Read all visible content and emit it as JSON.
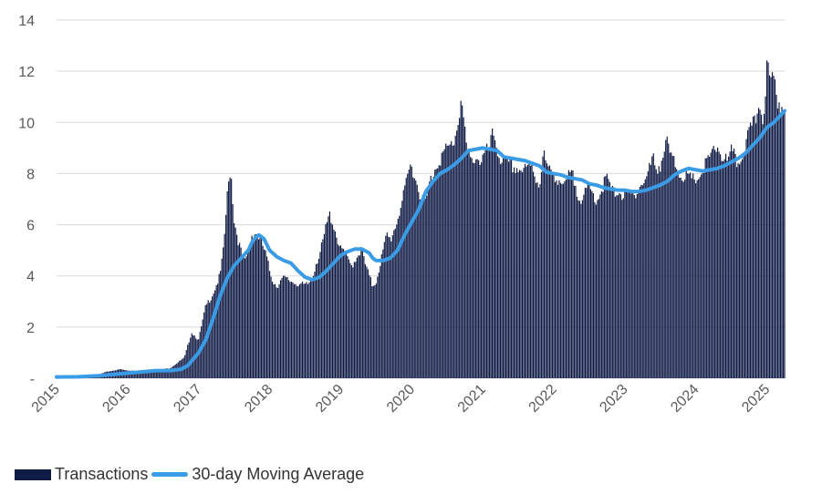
{
  "colors": {
    "bars": "#0f1a45",
    "line": "#3b9ce6",
    "grid": "#d9d9d9",
    "axis_text": "#595959",
    "legend_text": "#333333"
  },
  "chart_data": {
    "type": "bar",
    "title": "",
    "xlabel": "",
    "ylabel": "",
    "ylim": [
      0,
      14
    ],
    "y_ticks": [
      {
        "value": 0,
        "label": "-"
      },
      {
        "value": 2,
        "label": "2"
      },
      {
        "value": 4,
        "label": "4"
      },
      {
        "value": 6,
        "label": "6"
      },
      {
        "value": 8,
        "label": "8"
      },
      {
        "value": 10,
        "label": "10"
      },
      {
        "value": 12,
        "label": "12"
      },
      {
        "value": 14,
        "label": "14"
      }
    ],
    "x_range": [
      2015.0,
      2025.25
    ],
    "x_ticks": [
      {
        "value": 2015,
        "label": "2015"
      },
      {
        "value": 2016,
        "label": "2016"
      },
      {
        "value": 2017,
        "label": "2017"
      },
      {
        "value": 2018,
        "label": "2018"
      },
      {
        "value": 2019,
        "label": "2019"
      },
      {
        "value": 2020,
        "label": "2020"
      },
      {
        "value": 2021,
        "label": "2021"
      },
      {
        "value": 2022,
        "label": "2022"
      },
      {
        "value": 2023,
        "label": "2023"
      },
      {
        "value": 2024,
        "label": "2024"
      },
      {
        "value": 2025,
        "label": "2025"
      }
    ],
    "grid": "horizontal",
    "legend_position": "bottom-left",
    "series": [
      {
        "name": "Transactions",
        "kind": "bar",
        "points": [
          [
            2015.0,
            0.05
          ],
          [
            2015.1,
            0.05
          ],
          [
            2015.2,
            0.05
          ],
          [
            2015.3,
            0.06
          ],
          [
            2015.4,
            0.08
          ],
          [
            2015.5,
            0.1
          ],
          [
            2015.6,
            0.15
          ],
          [
            2015.7,
            0.25
          ],
          [
            2015.8,
            0.3
          ],
          [
            2015.9,
            0.35
          ],
          [
            2016.0,
            0.3
          ],
          [
            2016.1,
            0.3
          ],
          [
            2016.2,
            0.25
          ],
          [
            2016.3,
            0.3
          ],
          [
            2016.4,
            0.3
          ],
          [
            2016.5,
            0.35
          ],
          [
            2016.6,
            0.4
          ],
          [
            2016.7,
            0.6
          ],
          [
            2016.8,
            0.8
          ],
          [
            2016.9,
            1.8
          ],
          [
            2017.0,
            1.5
          ],
          [
            2017.1,
            2.8
          ],
          [
            2017.2,
            3.3
          ],
          [
            2017.3,
            4.0
          ],
          [
            2017.35,
            5.0
          ],
          [
            2017.4,
            7.0
          ],
          [
            2017.45,
            8.3
          ],
          [
            2017.5,
            6.2
          ],
          [
            2017.55,
            5.5
          ],
          [
            2017.6,
            4.9
          ],
          [
            2017.65,
            4.5
          ],
          [
            2017.7,
            5.0
          ],
          [
            2017.75,
            5.6
          ],
          [
            2017.8,
            5.7
          ],
          [
            2017.85,
            5.5
          ],
          [
            2017.9,
            5.2
          ],
          [
            2017.95,
            4.8
          ],
          [
            2018.0,
            4.2
          ],
          [
            2018.05,
            3.8
          ],
          [
            2018.1,
            3.6
          ],
          [
            2018.15,
            3.8
          ],
          [
            2018.2,
            3.9
          ],
          [
            2018.3,
            3.8
          ],
          [
            2018.4,
            3.7
          ],
          [
            2018.5,
            3.6
          ],
          [
            2018.55,
            3.7
          ],
          [
            2018.6,
            3.9
          ],
          [
            2018.65,
            4.5
          ],
          [
            2018.7,
            4.8
          ],
          [
            2018.75,
            5.3
          ],
          [
            2018.8,
            6.0
          ],
          [
            2018.85,
            6.4
          ],
          [
            2018.9,
            6.0
          ],
          [
            2018.95,
            5.5
          ],
          [
            2019.0,
            5.0
          ],
          [
            2019.05,
            5.0
          ],
          [
            2019.1,
            4.6
          ],
          [
            2019.15,
            4.4
          ],
          [
            2019.2,
            4.6
          ],
          [
            2019.25,
            4.9
          ],
          [
            2019.3,
            5.0
          ],
          [
            2019.35,
            4.4
          ],
          [
            2019.4,
            4.0
          ],
          [
            2019.45,
            3.6
          ],
          [
            2019.5,
            3.8
          ],
          [
            2019.55,
            4.4
          ],
          [
            2019.6,
            5.0
          ],
          [
            2019.65,
            5.6
          ],
          [
            2019.7,
            5.4
          ],
          [
            2019.75,
            5.8
          ],
          [
            2019.8,
            6.2
          ],
          [
            2019.85,
            6.8
          ],
          [
            2019.9,
            7.2
          ],
          [
            2019.95,
            8.0
          ],
          [
            2020.0,
            8.4
          ],
          [
            2020.05,
            7.8
          ],
          [
            2020.1,
            7.4
          ],
          [
            2020.15,
            7.0
          ],
          [
            2020.2,
            6.9
          ],
          [
            2020.25,
            7.6
          ],
          [
            2020.3,
            8.0
          ],
          [
            2020.35,
            8.4
          ],
          [
            2020.4,
            8.6
          ],
          [
            2020.45,
            8.8
          ],
          [
            2020.5,
            8.9
          ],
          [
            2020.55,
            9.1
          ],
          [
            2020.6,
            9.3
          ],
          [
            2020.65,
            10.0
          ],
          [
            2020.7,
            11.0
          ],
          [
            2020.75,
            9.5
          ],
          [
            2020.8,
            8.6
          ],
          [
            2020.85,
            8.4
          ],
          [
            2020.9,
            8.8
          ],
          [
            2020.95,
            8.5
          ],
          [
            2021.0,
            8.6
          ],
          [
            2021.05,
            8.8
          ],
          [
            2021.1,
            9.0
          ],
          [
            2021.15,
            9.6
          ],
          [
            2021.2,
            9.0
          ],
          [
            2021.25,
            8.6
          ],
          [
            2021.3,
            8.4
          ],
          [
            2021.4,
            8.3
          ],
          [
            2021.5,
            8.2
          ],
          [
            2021.6,
            8.1
          ],
          [
            2021.7,
            8.3
          ],
          [
            2021.75,
            7.8
          ],
          [
            2021.8,
            7.6
          ],
          [
            2021.85,
            8.8
          ],
          [
            2021.9,
            8.3
          ],
          [
            2021.95,
            8.0
          ],
          [
            2022.0,
            8.0
          ],
          [
            2022.1,
            7.7
          ],
          [
            2022.15,
            7.4
          ],
          [
            2022.2,
            7.8
          ],
          [
            2022.25,
            8.0
          ],
          [
            2022.3,
            7.6
          ],
          [
            2022.35,
            7.2
          ],
          [
            2022.4,
            7.0
          ],
          [
            2022.45,
            7.2
          ],
          [
            2022.5,
            7.4
          ],
          [
            2022.55,
            7.2
          ],
          [
            2022.6,
            7.0
          ],
          [
            2022.65,
            7.2
          ],
          [
            2022.7,
            7.6
          ],
          [
            2022.75,
            7.8
          ],
          [
            2022.8,
            7.4
          ],
          [
            2022.85,
            7.2
          ],
          [
            2022.9,
            7.4
          ],
          [
            2022.95,
            7.2
          ],
          [
            2023.0,
            7.1
          ],
          [
            2023.05,
            7.2
          ],
          [
            2023.1,
            7.1
          ],
          [
            2023.15,
            7.3
          ],
          [
            2023.2,
            7.5
          ],
          [
            2023.25,
            7.6
          ],
          [
            2023.3,
            7.8
          ],
          [
            2023.35,
            8.2
          ],
          [
            2023.4,
            8.6
          ],
          [
            2023.45,
            8.2
          ],
          [
            2023.5,
            8.4
          ],
          [
            2023.55,
            8.8
          ],
          [
            2023.6,
            9.2
          ],
          [
            2023.65,
            8.6
          ],
          [
            2023.7,
            8.4
          ],
          [
            2023.75,
            8.2
          ],
          [
            2023.8,
            7.9
          ],
          [
            2023.85,
            8.0
          ],
          [
            2023.9,
            7.8
          ],
          [
            2023.95,
            7.7
          ],
          [
            2024.0,
            7.8
          ],
          [
            2024.05,
            7.9
          ],
          [
            2024.1,
            8.1
          ],
          [
            2024.15,
            8.4
          ],
          [
            2024.2,
            8.6
          ],
          [
            2024.25,
            8.8
          ],
          [
            2024.3,
            9.1
          ],
          [
            2024.35,
            8.8
          ],
          [
            2024.4,
            8.6
          ],
          [
            2024.45,
            8.4
          ],
          [
            2024.5,
            8.8
          ],
          [
            2024.55,
            8.6
          ],
          [
            2024.6,
            8.4
          ],
          [
            2024.65,
            8.7
          ],
          [
            2024.7,
            9.2
          ],
          [
            2024.75,
            9.5
          ],
          [
            2024.8,
            9.8
          ],
          [
            2024.85,
            10.2
          ],
          [
            2024.9,
            10.8
          ],
          [
            2024.95,
            10.2
          ],
          [
            2025.0,
            12.2
          ],
          [
            2025.05,
            11.5
          ],
          [
            2025.1,
            11.7
          ],
          [
            2025.15,
            11.0
          ],
          [
            2025.2,
            10.6
          ],
          [
            2025.25,
            10.8
          ]
        ]
      },
      {
        "name": "30-day Moving Average",
        "kind": "line",
        "points": [
          [
            2015.0,
            0.05
          ],
          [
            2015.3,
            0.06
          ],
          [
            2015.6,
            0.1
          ],
          [
            2015.8,
            0.15
          ],
          [
            2016.0,
            0.2
          ],
          [
            2016.2,
            0.25
          ],
          [
            2016.4,
            0.3
          ],
          [
            2016.6,
            0.3
          ],
          [
            2016.75,
            0.35
          ],
          [
            2016.85,
            0.5
          ],
          [
            2017.0,
            1.0
          ],
          [
            2017.1,
            1.5
          ],
          [
            2017.2,
            2.3
          ],
          [
            2017.3,
            3.2
          ],
          [
            2017.4,
            3.9
          ],
          [
            2017.5,
            4.4
          ],
          [
            2017.6,
            4.7
          ],
          [
            2017.7,
            5.0
          ],
          [
            2017.75,
            5.3
          ],
          [
            2017.8,
            5.5
          ],
          [
            2017.85,
            5.6
          ],
          [
            2017.92,
            5.45
          ],
          [
            2018.0,
            5.0
          ],
          [
            2018.1,
            4.75
          ],
          [
            2018.2,
            4.6
          ],
          [
            2018.3,
            4.5
          ],
          [
            2018.4,
            4.2
          ],
          [
            2018.5,
            3.95
          ],
          [
            2018.6,
            3.85
          ],
          [
            2018.7,
            3.95
          ],
          [
            2018.8,
            4.2
          ],
          [
            2018.9,
            4.5
          ],
          [
            2019.0,
            4.8
          ],
          [
            2019.1,
            4.95
          ],
          [
            2019.2,
            5.05
          ],
          [
            2019.3,
            5.05
          ],
          [
            2019.4,
            4.9
          ],
          [
            2019.45,
            4.7
          ],
          [
            2019.5,
            4.6
          ],
          [
            2019.6,
            4.6
          ],
          [
            2019.7,
            4.7
          ],
          [
            2019.8,
            5.0
          ],
          [
            2019.9,
            5.6
          ],
          [
            2020.0,
            6.1
          ],
          [
            2020.1,
            6.6
          ],
          [
            2020.2,
            7.3
          ],
          [
            2020.3,
            7.7
          ],
          [
            2020.4,
            8.0
          ],
          [
            2020.5,
            8.15
          ],
          [
            2020.6,
            8.35
          ],
          [
            2020.7,
            8.6
          ],
          [
            2020.8,
            8.9
          ],
          [
            2020.9,
            8.95
          ],
          [
            2021.0,
            9.0
          ],
          [
            2021.1,
            8.95
          ],
          [
            2021.2,
            8.9
          ],
          [
            2021.3,
            8.65
          ],
          [
            2021.4,
            8.6
          ],
          [
            2021.5,
            8.55
          ],
          [
            2021.6,
            8.5
          ],
          [
            2021.7,
            8.4
          ],
          [
            2021.8,
            8.3
          ],
          [
            2021.9,
            8.05
          ],
          [
            2022.0,
            8.0
          ],
          [
            2022.1,
            7.95
          ],
          [
            2022.2,
            7.85
          ],
          [
            2022.3,
            7.8
          ],
          [
            2022.4,
            7.75
          ],
          [
            2022.5,
            7.6
          ],
          [
            2022.6,
            7.55
          ],
          [
            2022.7,
            7.45
          ],
          [
            2022.8,
            7.4
          ],
          [
            2022.9,
            7.35
          ],
          [
            2023.0,
            7.35
          ],
          [
            2023.1,
            7.3
          ],
          [
            2023.2,
            7.3
          ],
          [
            2023.3,
            7.35
          ],
          [
            2023.4,
            7.45
          ],
          [
            2023.5,
            7.55
          ],
          [
            2023.6,
            7.7
          ],
          [
            2023.7,
            7.95
          ],
          [
            2023.8,
            8.1
          ],
          [
            2023.9,
            8.2
          ],
          [
            2024.0,
            8.15
          ],
          [
            2024.1,
            8.1
          ],
          [
            2024.2,
            8.15
          ],
          [
            2024.3,
            8.2
          ],
          [
            2024.4,
            8.3
          ],
          [
            2024.5,
            8.45
          ],
          [
            2024.6,
            8.6
          ],
          [
            2024.7,
            8.8
          ],
          [
            2024.8,
            9.1
          ],
          [
            2024.9,
            9.4
          ],
          [
            2025.0,
            9.8
          ],
          [
            2025.1,
            10.0
          ],
          [
            2025.2,
            10.3
          ],
          [
            2025.25,
            10.45
          ]
        ]
      }
    ]
  }
}
